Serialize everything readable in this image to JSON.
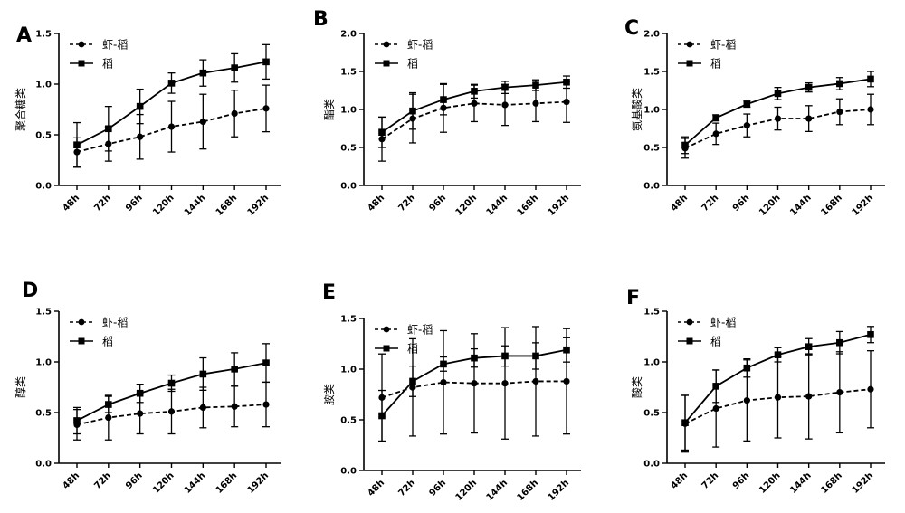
{
  "figure": {
    "chart_data": [
      {
        "type": "line",
        "panel": "A",
        "ylabel": "聚合糖类",
        "ylim": [
          0,
          1.5
        ],
        "yticks": [
          "0.0",
          "0.5",
          "1.0",
          "1.5"
        ],
        "categories": [
          "48h",
          "72h",
          "96h",
          "120h",
          "144h",
          "168h",
          "192h"
        ],
        "legend": "top-left",
        "series": [
          {
            "name": "虾-稻",
            "style": "dashed",
            "marker": "circle",
            "values": [
              0.33,
              0.41,
              0.48,
              0.58,
              0.63,
              0.71,
              0.76
            ],
            "errors": [
              0.14,
              0.17,
              0.22,
              0.25,
              0.27,
              0.23,
              0.23
            ]
          },
          {
            "name": "稻",
            "style": "solid",
            "marker": "square",
            "values": [
              0.4,
              0.56,
              0.78,
              1.01,
              1.11,
              1.16,
              1.22
            ],
            "errors": [
              0.22,
              0.22,
              0.17,
              0.1,
              0.13,
              0.14,
              0.17
            ]
          }
        ]
      },
      {
        "type": "line",
        "panel": "B",
        "ylabel": "酯类",
        "ylim": [
          0,
          2.0
        ],
        "yticks": [
          "0.0",
          "0.5",
          "1.0",
          "1.5",
          "2.0"
        ],
        "categories": [
          "48h",
          "72h",
          "96h",
          "120h",
          "144h",
          "168h",
          "192h"
        ],
        "legend": "top-left",
        "series": [
          {
            "name": "虾-稻",
            "style": "dashed",
            "marker": "circle",
            "values": [
              0.61,
              0.88,
              1.02,
              1.08,
              1.06,
              1.08,
              1.1
            ],
            "errors": [
              0.29,
              0.32,
              0.32,
              0.24,
              0.27,
              0.24,
              0.27
            ]
          },
          {
            "name": "稻",
            "style": "solid",
            "marker": "square",
            "values": [
              0.7,
              0.98,
              1.13,
              1.24,
              1.29,
              1.32,
              1.36
            ],
            "errors": [
              0.2,
              0.24,
              0.2,
              0.09,
              0.08,
              0.07,
              0.08
            ]
          }
        ]
      },
      {
        "type": "line",
        "panel": "C",
        "ylabel": "氨基酸类",
        "ylim": [
          0,
          2.0
        ],
        "yticks": [
          "0.0",
          "0.5",
          "1.0",
          "1.5",
          "2.0"
        ],
        "categories": [
          "48h",
          "72h",
          "96h",
          "120h",
          "144h",
          "168h",
          "192h"
        ],
        "legend": "top-left",
        "series": [
          {
            "name": "虾-稻",
            "style": "dashed",
            "marker": "circle",
            "values": [
              0.49,
              0.68,
              0.79,
              0.88,
              0.88,
              0.97,
              1.0
            ],
            "errors": [
              0.13,
              0.14,
              0.15,
              0.15,
              0.17,
              0.17,
              0.2
            ]
          },
          {
            "name": "稻",
            "style": "solid",
            "marker": "square",
            "values": [
              0.53,
              0.89,
              1.07,
              1.21,
              1.29,
              1.34,
              1.4
            ],
            "errors": [
              0.11,
              0.04,
              0.04,
              0.08,
              0.06,
              0.08,
              0.1
            ]
          }
        ]
      },
      {
        "type": "line",
        "panel": "D",
        "ylabel": "醇类",
        "ylim": [
          0,
          1.5
        ],
        "yticks": [
          "0.0",
          "0.5",
          "1.0",
          "1.5"
        ],
        "categories": [
          "48h",
          "72h",
          "96h",
          "120h",
          "144h",
          "168h",
          "192h"
        ],
        "legend": "top-left",
        "series": [
          {
            "name": "虾-稻",
            "style": "dashed",
            "marker": "circle",
            "values": [
              0.38,
              0.45,
              0.49,
              0.51,
              0.55,
              0.56,
              0.58
            ],
            "errors": [
              0.15,
              0.22,
              0.2,
              0.22,
              0.2,
              0.2,
              0.22
            ]
          },
          {
            "name": "稻",
            "style": "solid",
            "marker": "square",
            "values": [
              0.42,
              0.58,
              0.69,
              0.79,
              0.88,
              0.93,
              0.99
            ],
            "errors": [
              0.13,
              0.08,
              0.09,
              0.08,
              0.16,
              0.16,
              0.19
            ]
          }
        ]
      },
      {
        "type": "line",
        "panel": "E",
        "ylabel": "胺类",
        "ylim": [
          0,
          1.5
        ],
        "yticks": [
          "0.0",
          "0.5",
          "1.0",
          "1.5"
        ],
        "categories": [
          "48h",
          "72h",
          "96h",
          "120h",
          "144h",
          "168h",
          "192h"
        ],
        "legend": "top-left",
        "series": [
          {
            "name": "虾-稻",
            "style": "dashed",
            "marker": "circle",
            "values": [
              0.72,
              0.82,
              0.87,
              0.86,
              0.86,
              0.88,
              0.88
            ],
            "errors": [
              0.43,
              0.48,
              0.51,
              0.49,
              0.55,
              0.54,
              0.52
            ]
          },
          {
            "name": "稻",
            "style": "solid",
            "marker": "square",
            "values": [
              0.54,
              0.88,
              1.05,
              1.11,
              1.13,
              1.13,
              1.19
            ],
            "errors": [
              0.25,
              0.15,
              0.07,
              0.09,
              0.1,
              0.13,
              0.12
            ]
          }
        ]
      },
      {
        "type": "line",
        "panel": "F",
        "ylabel": "酸类",
        "ylim": [
          0,
          1.5
        ],
        "yticks": [
          "0.0",
          "0.5",
          "1.0",
          "1.5"
        ],
        "categories": [
          "48h",
          "72h",
          "96h",
          "120h",
          "144h",
          "168h",
          "192h"
        ],
        "legend": "top-left",
        "series": [
          {
            "name": "虾-稻",
            "style": "dashed",
            "marker": "circle",
            "values": [
              0.39,
              0.54,
              0.62,
              0.65,
              0.66,
              0.7,
              0.73
            ],
            "errors": [
              0.28,
              0.38,
              0.4,
              0.4,
              0.42,
              0.4,
              0.38
            ]
          },
          {
            "name": "稻",
            "style": "solid",
            "marker": "square",
            "values": [
              0.4,
              0.76,
              0.94,
              1.07,
              1.15,
              1.19,
              1.27
            ],
            "errors": [
              0.27,
              0.16,
              0.09,
              0.07,
              0.08,
              0.11,
              0.08
            ]
          }
        ]
      }
    ]
  }
}
